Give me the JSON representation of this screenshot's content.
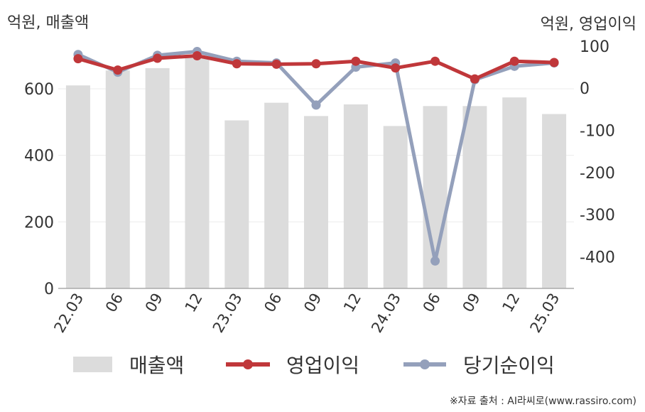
{
  "left_unit": "억원, 매출액",
  "right_unit": "억원, 영업이익",
  "source": "※자료 출처 : AI라씨로(www.rassiro.com)",
  "chart_data": {
    "type": "bar+line",
    "categories": [
      "22.03",
      "06",
      "09",
      "12",
      "23.03",
      "06",
      "09",
      "12",
      "24.03",
      "06",
      "09",
      "12",
      "25.03"
    ],
    "left_axis": {
      "ticks": [
        0,
        200,
        400,
        600
      ],
      "range": [
        0,
        760
      ]
    },
    "right_axis": {
      "ticks": [
        100,
        0,
        -100,
        -200,
        -300,
        -400
      ],
      "range": [
        -475,
        125
      ]
    },
    "series": [
      {
        "name": "매출액",
        "kind": "bar",
        "axis": "left",
        "color": "#dcdcdc",
        "values": [
          610,
          655,
          662,
          694,
          505,
          558,
          518,
          553,
          488,
          548,
          548,
          574,
          524
        ]
      },
      {
        "name": "당기순이익",
        "kind": "line",
        "axis": "right",
        "color": "#94a0bb",
        "values": [
          80,
          38,
          78,
          87,
          64,
          60,
          -40,
          50,
          60,
          -410,
          20,
          52,
          60
        ]
      },
      {
        "name": "영업이익",
        "kind": "line",
        "axis": "right",
        "color": "#c0373a",
        "values": [
          70,
          43,
          71,
          77,
          58,
          57,
          58,
          64,
          48,
          64,
          22,
          64,
          61
        ]
      }
    ],
    "legend": [
      {
        "label": "매출액",
        "color": "#dcdcdc",
        "style": "bar"
      },
      {
        "label": "영업이익",
        "color": "#c0373a",
        "style": "line"
      },
      {
        "label": "당기순이익",
        "color": "#94a0bb",
        "style": "line"
      }
    ],
    "legend_position": "bottom",
    "grid": true
  }
}
